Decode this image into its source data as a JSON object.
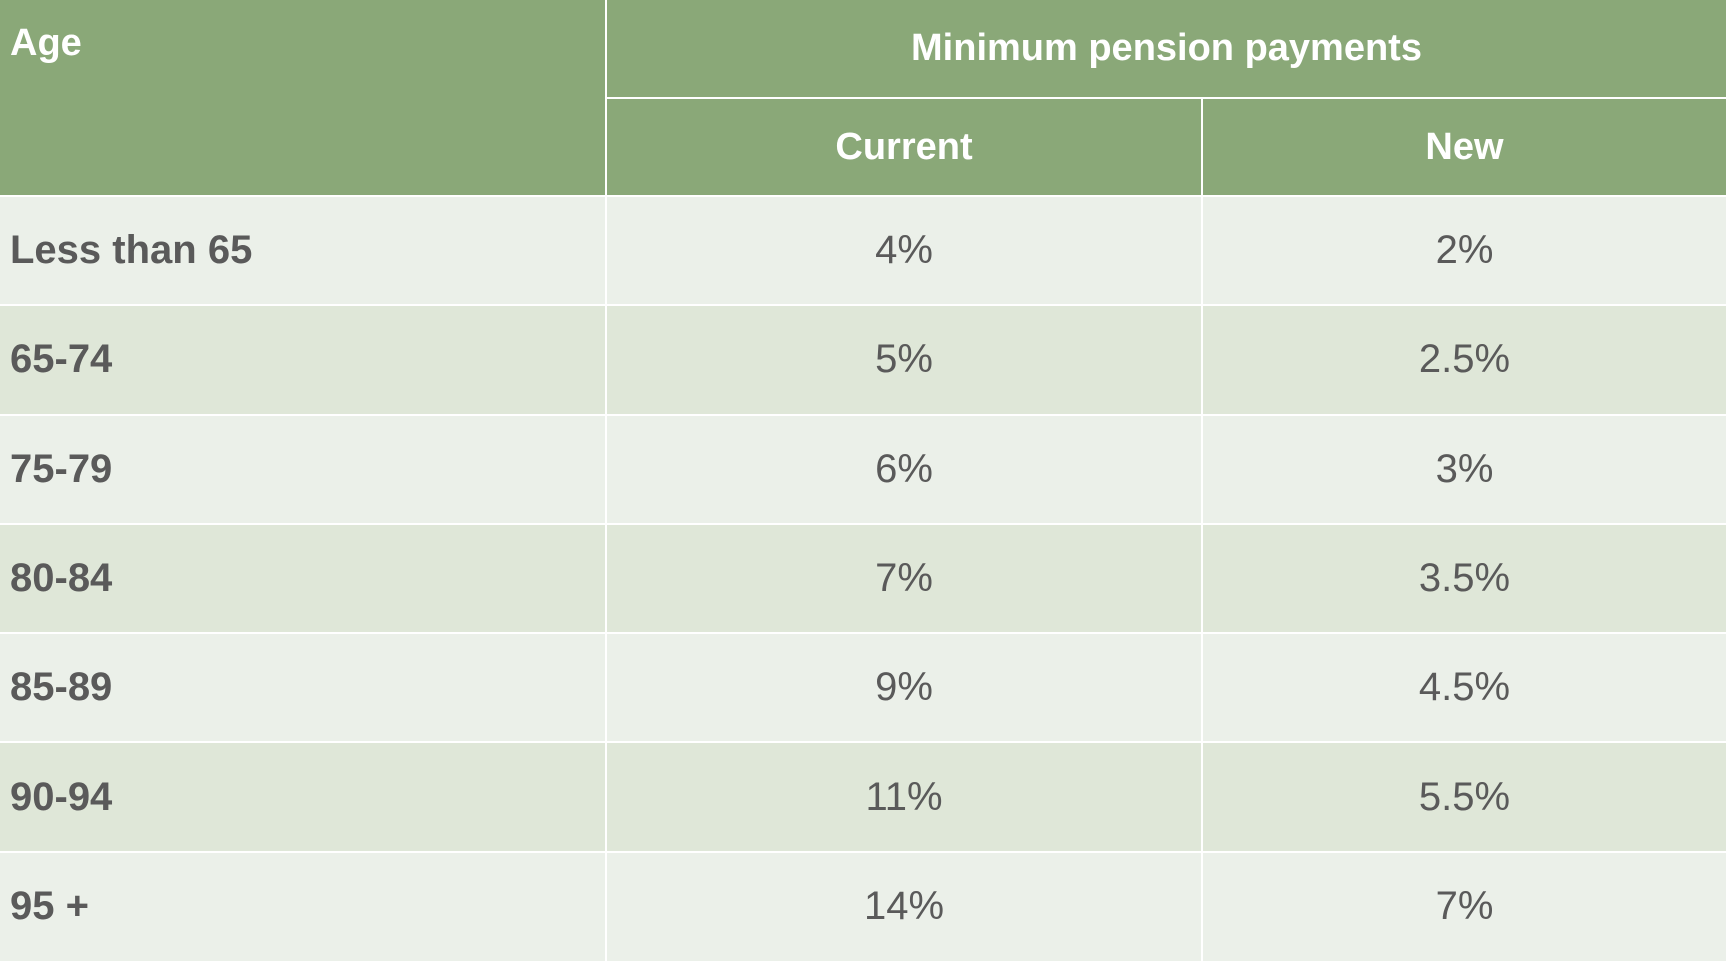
{
  "header": {
    "age": "Age",
    "group": "Minimum pension payments",
    "columns": [
      "Current",
      "New"
    ]
  },
  "table": {
    "rows": [
      [
        "Less than 65",
        "4%",
        "2%"
      ],
      [
        "65-74",
        "5%",
        "2.5%"
      ],
      [
        "75-79",
        "6%",
        "3%"
      ],
      [
        "80-84",
        "7%",
        "3.5%"
      ],
      [
        "85-89",
        "9%",
        "4.5%"
      ],
      [
        "90-94",
        "11%",
        "5.5%"
      ],
      [
        "95 +",
        "14%",
        "7%"
      ]
    ]
  }
}
